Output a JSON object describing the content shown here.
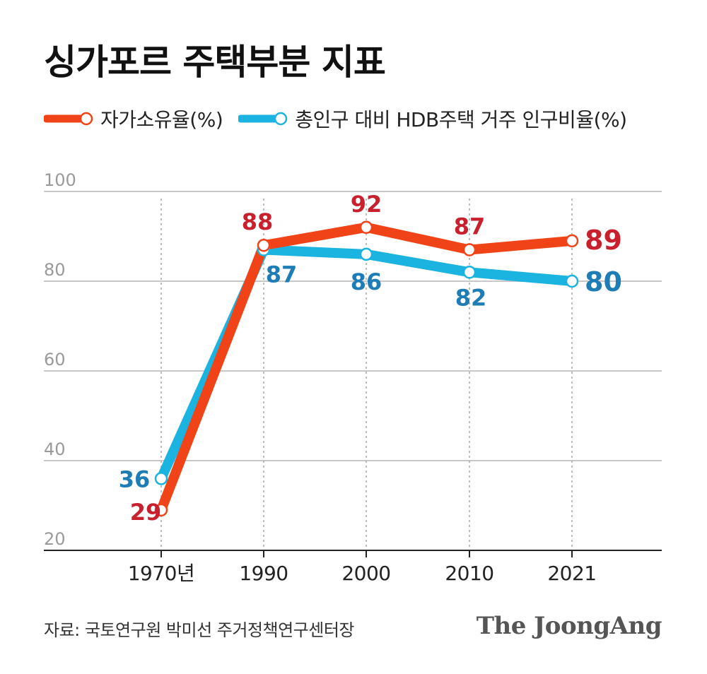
{
  "title": "싱가포르 주택부분 지표",
  "colors": {
    "owner": "#F04418",
    "hdb": "#1BB3DF",
    "owner_label": "#C9202E",
    "hdb_label": "#1F7DB6",
    "grid": "#c8c8c8",
    "axis": "#222222"
  },
  "chart_data": {
    "type": "line",
    "categories": [
      "1970년",
      "1990",
      "2000",
      "2010",
      "2021"
    ],
    "series": [
      {
        "name": "자가소유율(%)",
        "values": [
          29,
          88,
          92,
          87,
          89
        ]
      },
      {
        "name": "총인구 대비 HDB주택 거주 인구비율(%)",
        "values": [
          36,
          87,
          86,
          82,
          80
        ]
      }
    ],
    "value_labels": [
      [
        "29",
        "88",
        "92",
        "87",
        "89"
      ],
      [
        "36",
        "87",
        "86",
        "82",
        "80"
      ]
    ],
    "y_ticks": [
      "20",
      "40",
      "60",
      "80",
      "100"
    ],
    "ylim": [
      20,
      100
    ],
    "grid": true,
    "legend_position": "top-left"
  },
  "footer": {
    "source": "자료: 국토연구원 박미선 주거정책연구센터장",
    "brand": "The JoongAng"
  }
}
